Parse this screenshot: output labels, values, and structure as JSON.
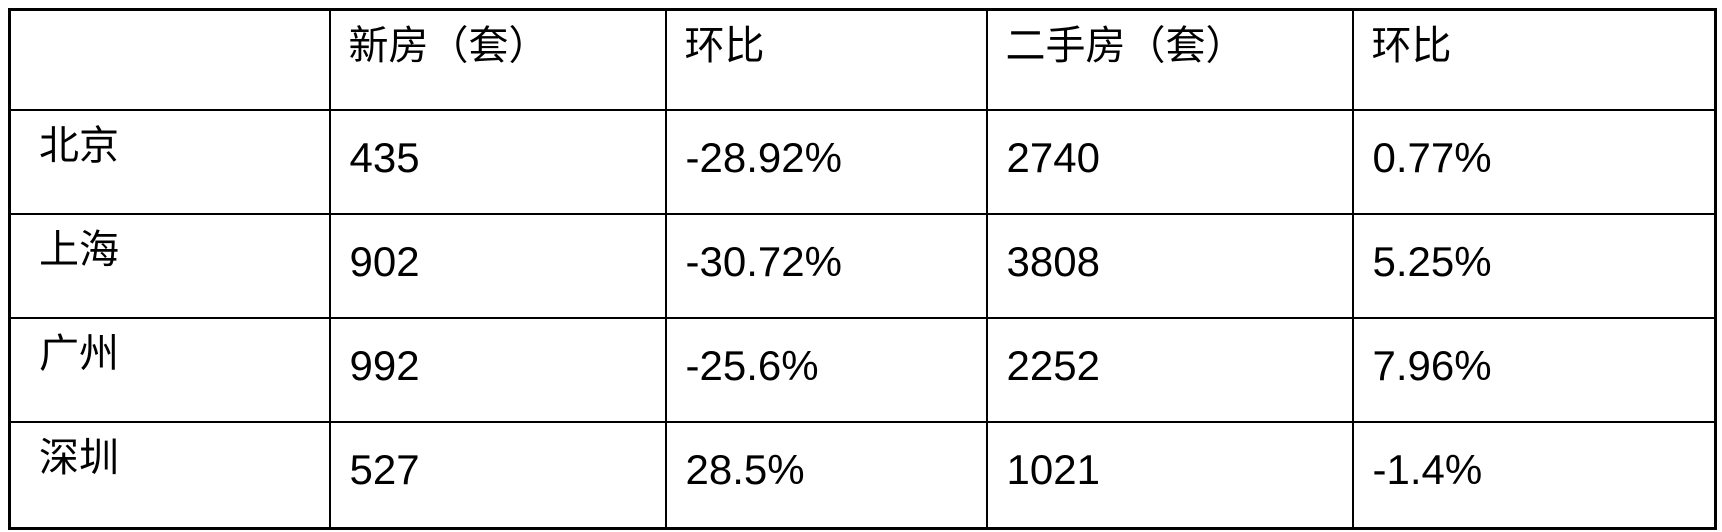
{
  "chart_data": {
    "type": "table",
    "title": "",
    "columns": [
      "",
      "新房（套）",
      "环比",
      "二手房（套）",
      "环比"
    ],
    "rows": [
      [
        "北京",
        "435",
        "-28.92%",
        "2740",
        "0.77%"
      ],
      [
        "上海",
        "902",
        "-30.72%",
        "3808",
        "5.25%"
      ],
      [
        "广州",
        "992",
        "-25.6%",
        "2252",
        "7.96%"
      ],
      [
        "深圳",
        "527",
        "28.5%",
        "1021",
        "-1.4%"
      ]
    ],
    "layout": {
      "grid": "on",
      "border_color": "#000000",
      "text_color": "#000000",
      "background_color": "#ffffff"
    }
  }
}
